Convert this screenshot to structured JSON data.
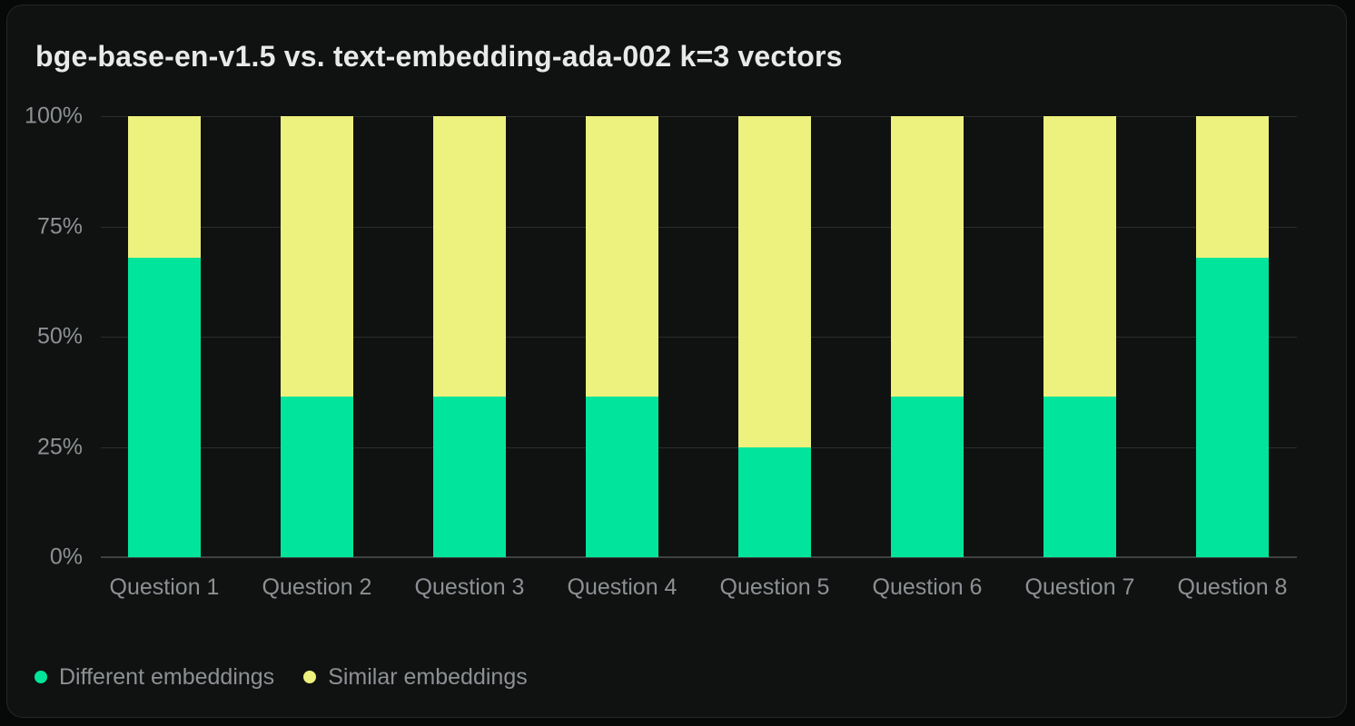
{
  "title": "bge-base-en-v1.5 vs. text-embedding-ada-002 k=3 vectors",
  "colors": {
    "page_background": "#070808",
    "card_background": "#101211",
    "gridline": "#2a2d2c",
    "axis_line": "#3e4240",
    "label_text": "#8d9094",
    "title_text": "#e8eaea",
    "different_embeddings": "#00e59b",
    "similar_embeddings": "#edf17d"
  },
  "chart_data": {
    "type": "bar",
    "stacked": true,
    "normalized": true,
    "title": "bge-base-en-v1.5 vs. text-embedding-ada-002 k=3 vectors",
    "categories": [
      "Question 1",
      "Question 2",
      "Question 3",
      "Question 4",
      "Question 5",
      "Question 6",
      "Question 7",
      "Question 8"
    ],
    "series": [
      {
        "name": "Different embeddings",
        "color": "#00e59b",
        "values": [
          68,
          36.5,
          36.5,
          36.5,
          25,
          36.5,
          36.5,
          68
        ]
      },
      {
        "name": "Similar embeddings",
        "color": "#edf17d",
        "values": [
          32,
          63.5,
          63.5,
          63.5,
          75,
          63.5,
          63.5,
          32
        ]
      }
    ],
    "xlabel": "",
    "ylabel": "",
    "ylim": [
      0,
      100
    ],
    "yticks": [
      {
        "value": 0,
        "label": "0%"
      },
      {
        "value": 25,
        "label": "25%"
      },
      {
        "value": 50,
        "label": "50%"
      },
      {
        "value": 75,
        "label": "75%"
      },
      {
        "value": 100,
        "label": "100%"
      }
    ],
    "grid": true,
    "legend_position": "bottom-left"
  }
}
